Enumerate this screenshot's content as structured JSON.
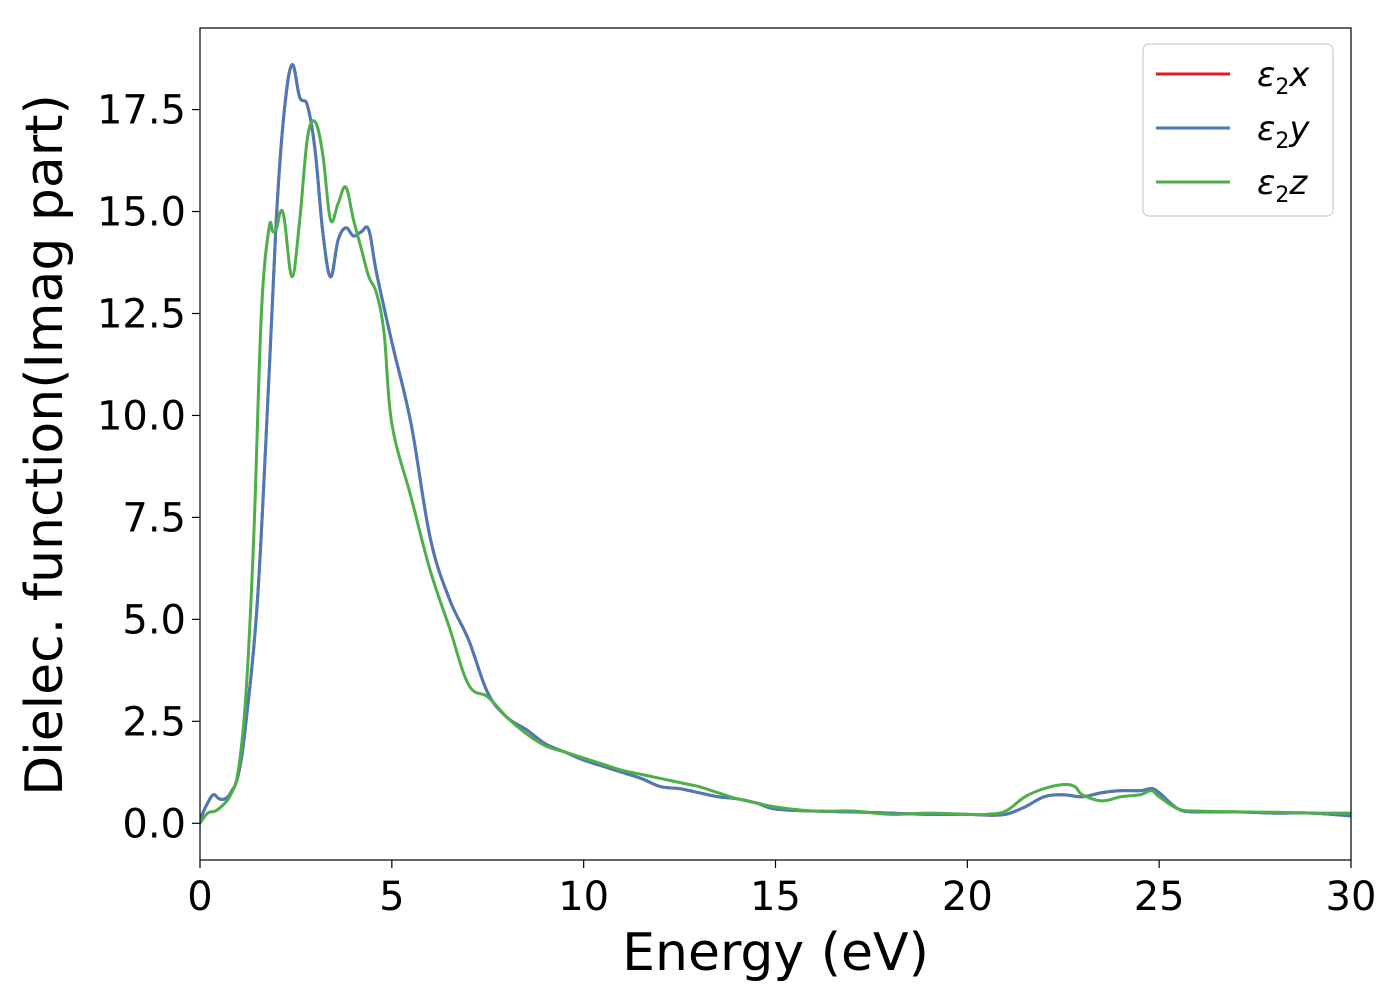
{
  "chart_data": {
    "type": "line",
    "xlabel": "Energy (eV)",
    "ylabel": "Dielec. function(Imag part)",
    "xlim": [
      0,
      30
    ],
    "ylim": [
      -0.9,
      19.5
    ],
    "xticks": [
      0,
      5,
      10,
      15,
      20,
      25,
      30
    ],
    "xtick_labels": [
      "0",
      "5",
      "10",
      "15",
      "20",
      "25",
      "30"
    ],
    "yticks": [
      0.0,
      2.5,
      5.0,
      7.5,
      10.0,
      12.5,
      15.0,
      17.5
    ],
    "ytick_labels": [
      "0.0",
      "2.5",
      "5.0",
      "7.5",
      "10.0",
      "12.5",
      "15.0",
      "17.5"
    ],
    "grid": false,
    "legend_position": "top-right",
    "series": [
      {
        "name": "ε2x",
        "legend_base": "ε",
        "legend_sub": "2",
        "legend_var": "x",
        "color": "#e41a1c",
        "x": [
          0,
          0.2,
          0.35,
          0.5,
          0.65,
          0.8,
          1.0,
          1.2,
          1.5,
          1.8,
          2.0,
          2.2,
          2.4,
          2.6,
          2.8,
          3.0,
          3.2,
          3.4,
          3.6,
          3.8,
          4.0,
          4.2,
          4.4,
          4.6,
          5.0,
          5.5,
          6.0,
          6.5,
          7.0,
          7.5,
          8.0,
          8.5,
          9.0,
          9.5,
          10.0,
          10.5,
          11.0,
          11.5,
          12.0,
          12.5,
          13.0,
          13.5,
          14.0,
          14.5,
          15.0,
          16.0,
          17.0,
          18.0,
          19.0,
          20.0,
          20.5,
          21.0,
          21.5,
          22.0,
          22.5,
          23.0,
          23.5,
          24.0,
          24.5,
          24.8,
          25.0,
          25.5,
          26.0,
          27.0,
          28.0,
          29.0,
          30.0
        ],
        "y": [
          0.1,
          0.5,
          0.7,
          0.6,
          0.6,
          0.75,
          1.2,
          2.5,
          5.5,
          11.0,
          15.0,
          17.5,
          18.6,
          17.8,
          17.6,
          16.5,
          14.5,
          13.4,
          14.3,
          14.6,
          14.4,
          14.5,
          14.55,
          13.5,
          11.8,
          9.8,
          7.0,
          5.5,
          4.5,
          3.2,
          2.6,
          2.3,
          1.95,
          1.75,
          1.55,
          1.4,
          1.25,
          1.1,
          0.9,
          0.85,
          0.75,
          0.65,
          0.6,
          0.5,
          0.35,
          0.3,
          0.28,
          0.25,
          0.22,
          0.22,
          0.2,
          0.22,
          0.4,
          0.65,
          0.7,
          0.65,
          0.75,
          0.8,
          0.8,
          0.85,
          0.75,
          0.35,
          0.28,
          0.28,
          0.25,
          0.25,
          0.18
        ]
      },
      {
        "name": "ε2y",
        "legend_base": "ε",
        "legend_sub": "2",
        "legend_var": "y",
        "color": "#4a7ab7",
        "x": [
          0,
          0.2,
          0.35,
          0.5,
          0.65,
          0.8,
          1.0,
          1.2,
          1.5,
          1.8,
          2.0,
          2.2,
          2.4,
          2.6,
          2.8,
          3.0,
          3.2,
          3.4,
          3.6,
          3.8,
          4.0,
          4.2,
          4.4,
          4.6,
          5.0,
          5.5,
          6.0,
          6.5,
          7.0,
          7.5,
          8.0,
          8.5,
          9.0,
          9.5,
          10.0,
          10.5,
          11.0,
          11.5,
          12.0,
          12.5,
          13.0,
          13.5,
          14.0,
          14.5,
          15.0,
          16.0,
          17.0,
          18.0,
          19.0,
          20.0,
          20.5,
          21.0,
          21.5,
          22.0,
          22.5,
          23.0,
          23.5,
          24.0,
          24.5,
          24.8,
          25.0,
          25.5,
          26.0,
          27.0,
          28.0,
          29.0,
          30.0
        ],
        "y": [
          0.1,
          0.5,
          0.7,
          0.6,
          0.6,
          0.75,
          1.2,
          2.5,
          5.5,
          11.0,
          15.0,
          17.5,
          18.6,
          17.8,
          17.6,
          16.5,
          14.5,
          13.4,
          14.3,
          14.6,
          14.4,
          14.5,
          14.55,
          13.5,
          11.8,
          9.8,
          7.0,
          5.5,
          4.5,
          3.2,
          2.6,
          2.3,
          1.95,
          1.75,
          1.55,
          1.4,
          1.25,
          1.1,
          0.9,
          0.85,
          0.75,
          0.65,
          0.6,
          0.5,
          0.35,
          0.3,
          0.28,
          0.25,
          0.22,
          0.22,
          0.2,
          0.22,
          0.4,
          0.65,
          0.7,
          0.65,
          0.75,
          0.8,
          0.8,
          0.85,
          0.75,
          0.35,
          0.28,
          0.28,
          0.25,
          0.25,
          0.18
        ]
      },
      {
        "name": "ε2z",
        "legend_base": "ε",
        "legend_sub": "2",
        "legend_var": "z",
        "color": "#4daf4a",
        "x": [
          0,
          0.2,
          0.4,
          0.6,
          0.8,
          1.0,
          1.2,
          1.4,
          1.6,
          1.8,
          1.9,
          2.0,
          2.1,
          2.2,
          2.4,
          2.6,
          2.8,
          3.0,
          3.2,
          3.4,
          3.6,
          3.8,
          4.0,
          4.2,
          4.4,
          4.6,
          4.8,
          5.0,
          5.5,
          6.0,
          6.5,
          7.0,
          7.5,
          8.0,
          8.5,
          9.0,
          9.5,
          10.0,
          10.5,
          11.0,
          11.5,
          12.0,
          12.5,
          13.0,
          13.5,
          14.0,
          14.5,
          15.0,
          16.0,
          17.0,
          18.0,
          19.0,
          20.0,
          20.5,
          21.0,
          21.5,
          22.0,
          22.5,
          22.8,
          23.0,
          23.5,
          24.0,
          24.5,
          24.8,
          25.0,
          25.5,
          26.0,
          27.0,
          28.0,
          29.0,
          30.0
        ],
        "y": [
          0.0,
          0.25,
          0.3,
          0.45,
          0.7,
          1.3,
          3.2,
          7.0,
          12.5,
          14.6,
          14.5,
          14.6,
          15.0,
          14.8,
          13.4,
          14.8,
          16.8,
          17.2,
          16.4,
          14.8,
          15.2,
          15.6,
          14.8,
          14.1,
          13.4,
          13.0,
          12.0,
          9.8,
          8.0,
          6.2,
          4.8,
          3.4,
          3.1,
          2.6,
          2.2,
          1.9,
          1.75,
          1.6,
          1.45,
          1.3,
          1.2,
          1.1,
          1.0,
          0.9,
          0.75,
          0.6,
          0.5,
          0.4,
          0.3,
          0.3,
          0.22,
          0.25,
          0.22,
          0.22,
          0.3,
          0.65,
          0.85,
          0.95,
          0.9,
          0.7,
          0.55,
          0.65,
          0.7,
          0.8,
          0.65,
          0.35,
          0.3,
          0.28,
          0.27,
          0.25,
          0.25
        ]
      }
    ]
  }
}
